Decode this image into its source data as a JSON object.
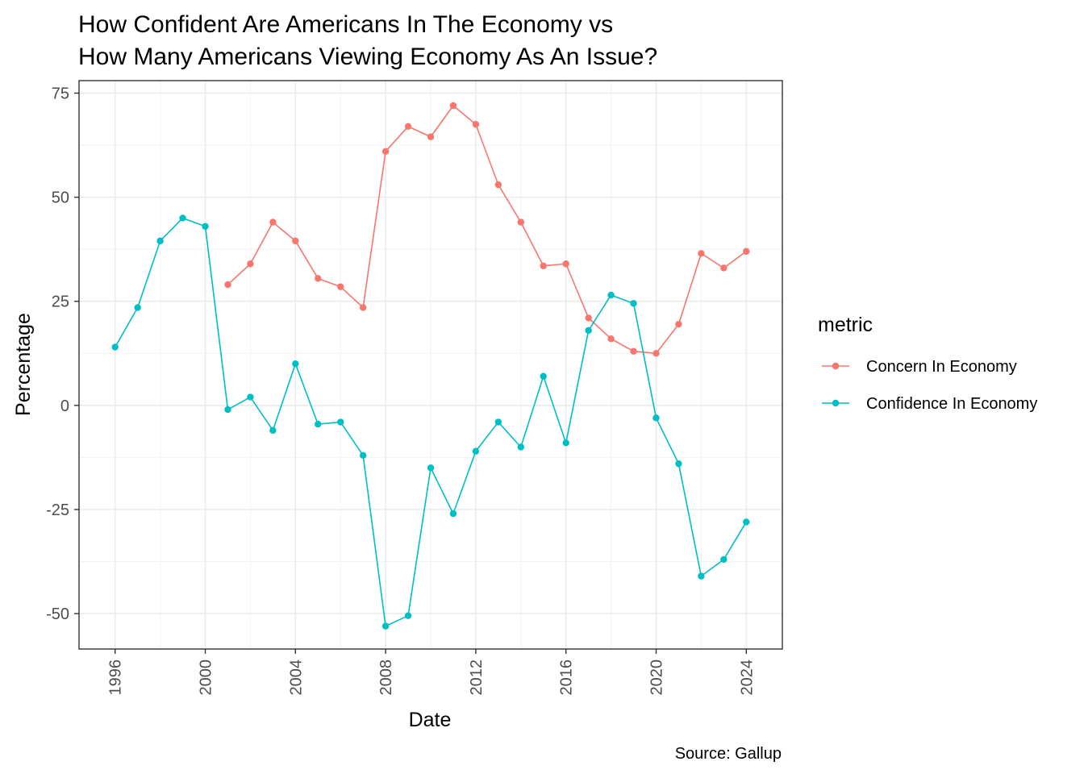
{
  "chart_data": {
    "type": "line",
    "title_lines": [
      "How Confident Are Americans In The Economy vs",
      "How Many Americans Viewing Economy As An Issue?"
    ],
    "xlabel": "Date",
    "ylabel": "Percentage",
    "caption": "Source: Gallup",
    "xlim": [
      1994.4,
      2025.6
    ],
    "ylim": [
      -58.5,
      78
    ],
    "x_ticks": [
      {
        "value": 1996,
        "label": "1996"
      },
      {
        "value": 2000,
        "label": "2000"
      },
      {
        "value": 2004,
        "label": "2004"
      },
      {
        "value": 2008,
        "label": "2008"
      },
      {
        "value": 2012,
        "label": "2012"
      },
      {
        "value": 2016,
        "label": "2016"
      },
      {
        "value": 2020,
        "label": "2020"
      },
      {
        "value": 2024,
        "label": "2024"
      }
    ],
    "y_ticks": [
      {
        "value": 75,
        "label": "75"
      },
      {
        "value": 50,
        "label": "50"
      },
      {
        "value": 25,
        "label": "25"
      },
      {
        "value": 0,
        "label": "0"
      },
      {
        "value": -25,
        "label": "-25"
      },
      {
        "value": -50,
        "label": "-50"
      }
    ],
    "grid": true,
    "legend": {
      "title": "metric",
      "position": "right"
    },
    "series": [
      {
        "name": "Concern In Economy",
        "color": "#F8766D",
        "points": [
          [
            2001,
            29
          ],
          [
            2002,
            34
          ],
          [
            2003,
            44
          ],
          [
            2004,
            39.5
          ],
          [
            2005,
            30.5
          ],
          [
            2006,
            28.5
          ],
          [
            2007,
            23.5
          ],
          [
            2008,
            61
          ],
          [
            2009,
            67
          ],
          [
            2010,
            64.5
          ],
          [
            2011,
            72
          ],
          [
            2012,
            67.5
          ],
          [
            2013,
            53
          ],
          [
            2014,
            44
          ],
          [
            2015,
            33.5
          ],
          [
            2016,
            34
          ],
          [
            2017,
            21
          ],
          [
            2018,
            16
          ],
          [
            2019,
            13
          ],
          [
            2020,
            12.5
          ],
          [
            2021,
            19.5
          ],
          [
            2022,
            36.5
          ],
          [
            2023,
            33
          ],
          [
            2024,
            37
          ]
        ]
      },
      {
        "name": "Confidence In Economy",
        "color": "#00BFC4",
        "points": [
          [
            1996,
            14
          ],
          [
            1997,
            23.5
          ],
          [
            1998,
            39.5
          ],
          [
            1999,
            45
          ],
          [
            2000,
            43
          ],
          [
            2001,
            -1
          ],
          [
            2002,
            2
          ],
          [
            2003,
            -6
          ],
          [
            2004,
            10
          ],
          [
            2005,
            -4.5
          ],
          [
            2006,
            -4
          ],
          [
            2007,
            -12
          ],
          [
            2008,
            -53
          ],
          [
            2009,
            -50.5
          ],
          [
            2010,
            -15
          ],
          [
            2011,
            -26
          ],
          [
            2012,
            -11
          ],
          [
            2013,
            -4
          ],
          [
            2014,
            -10
          ],
          [
            2015,
            7
          ],
          [
            2016,
            -9
          ],
          [
            2017,
            18
          ],
          [
            2018,
            26.5
          ],
          [
            2019,
            24.5
          ],
          [
            2020,
            -3
          ],
          [
            2021,
            -14
          ],
          [
            2022,
            -41
          ],
          [
            2023,
            -37
          ],
          [
            2024,
            -28
          ]
        ]
      }
    ]
  }
}
